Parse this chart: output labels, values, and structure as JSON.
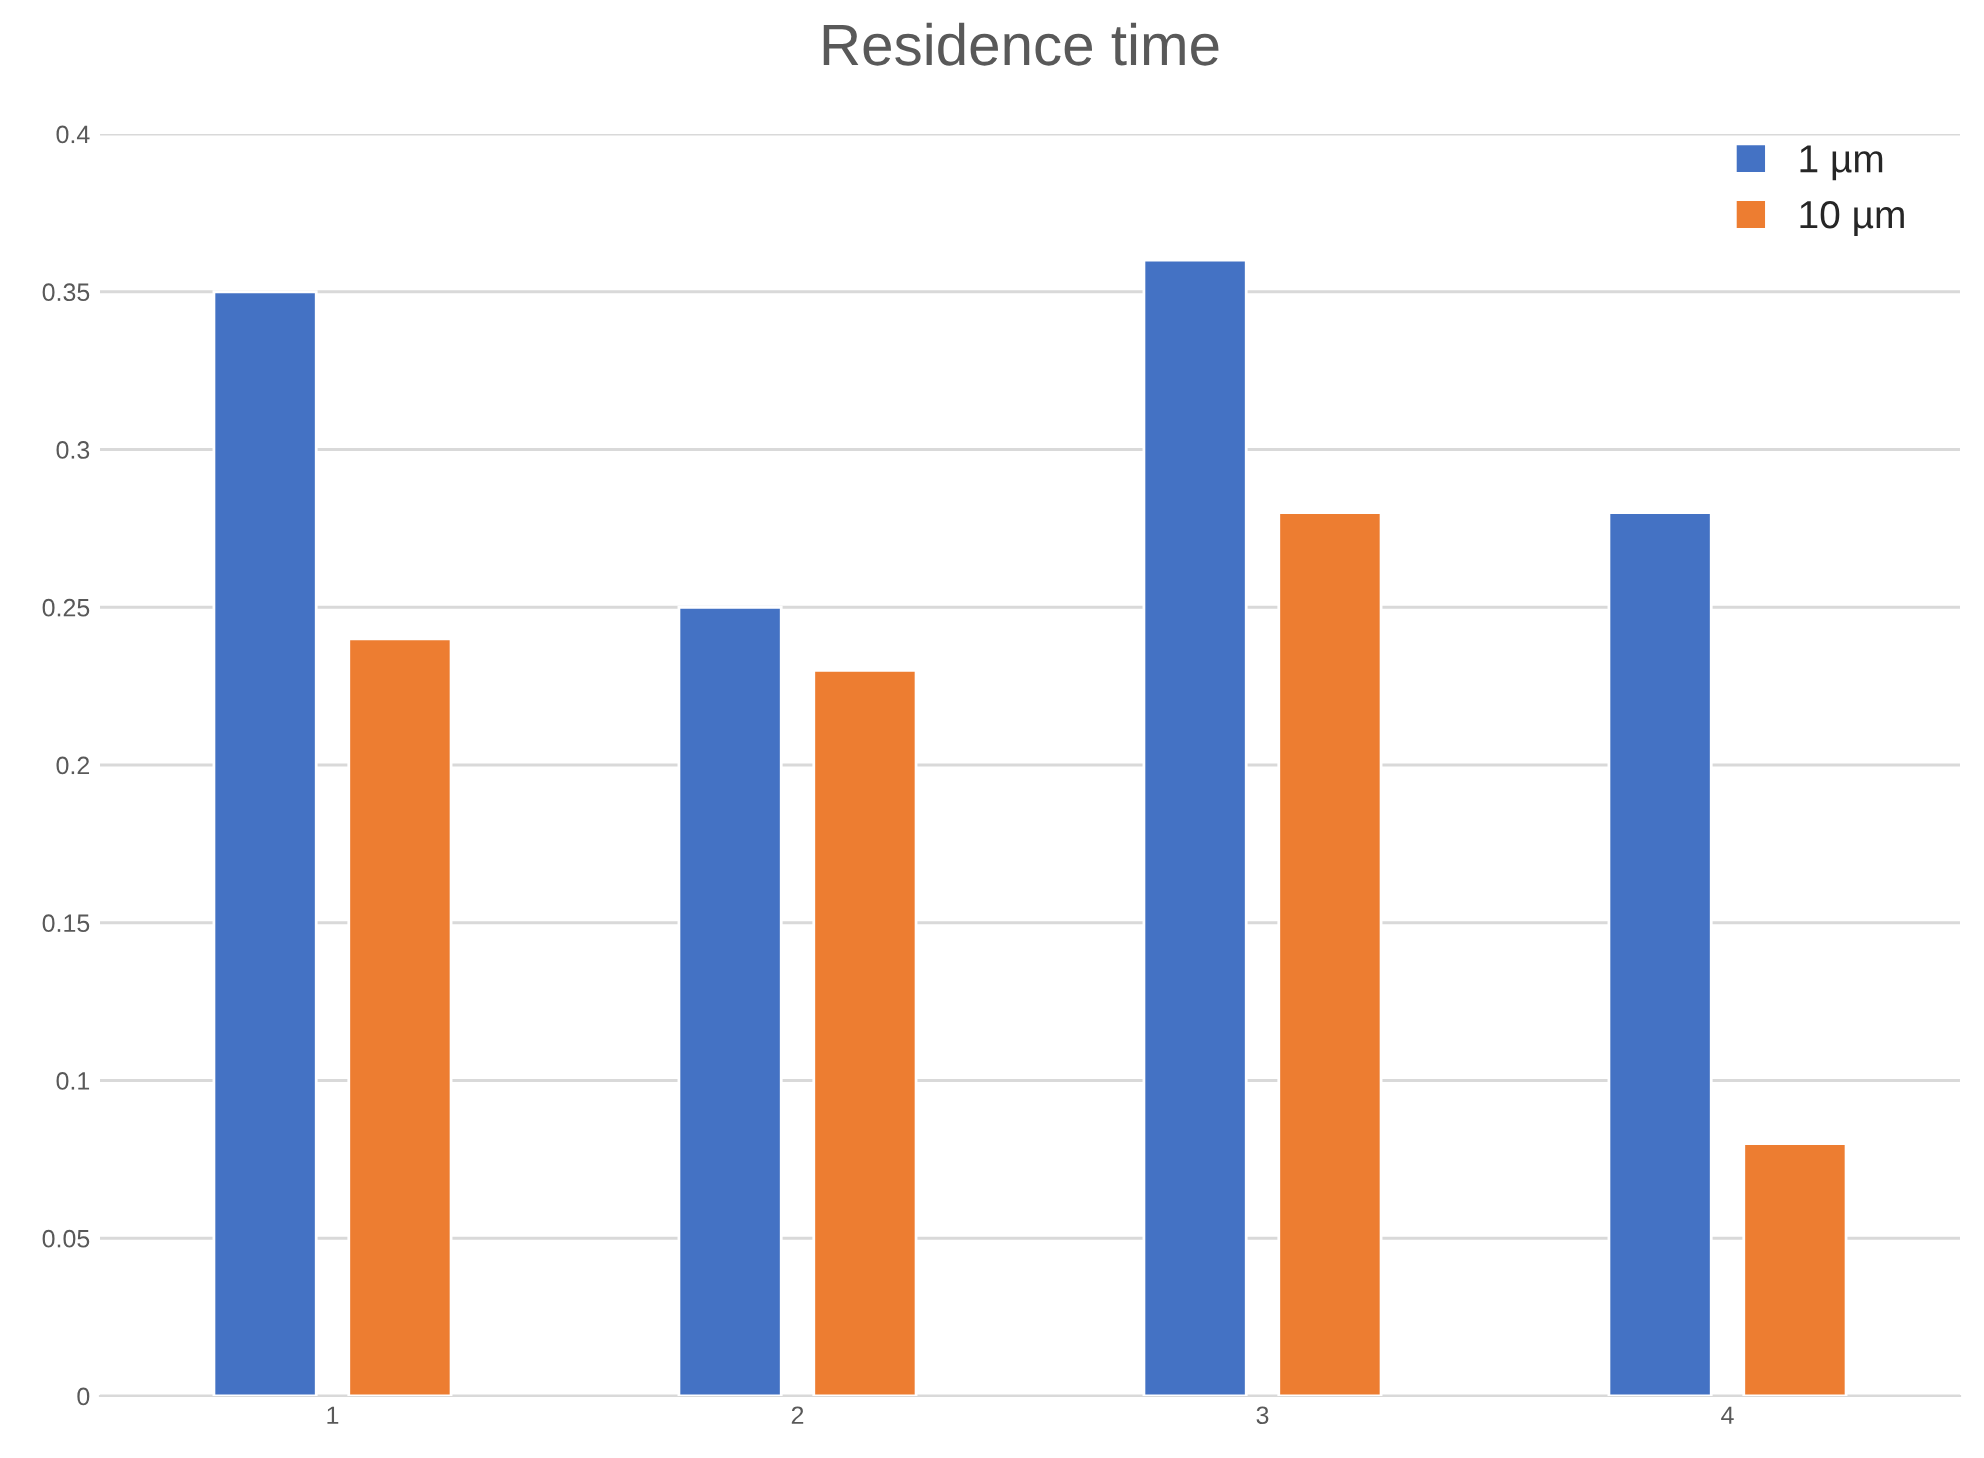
{
  "chart_data": {
    "type": "bar",
    "title": "Residence time",
    "categories": [
      "1",
      "2",
      "3",
      "4"
    ],
    "series": [
      {
        "name": "1 µm",
        "color": "#4472c4",
        "values": [
          0.35,
          0.25,
          0.36,
          0.28
        ]
      },
      {
        "name": "10 µm",
        "color": "#ed7d31",
        "values": [
          0.24,
          0.23,
          0.28,
          0.08
        ]
      }
    ],
    "ylim": [
      0,
      0.4
    ],
    "yticks": [
      0,
      0.05,
      0.1,
      0.15,
      0.2,
      0.25,
      0.3,
      0.35,
      0.4
    ],
    "grid": "y",
    "legend": "top right"
  }
}
